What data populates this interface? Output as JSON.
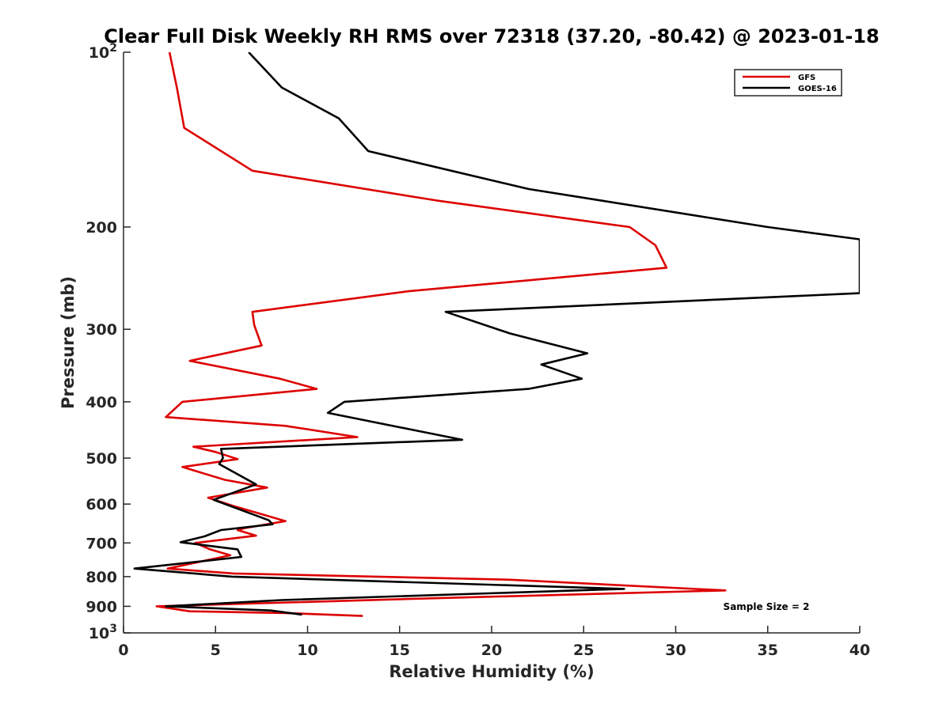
{
  "chart_data": {
    "type": "line",
    "title": "Clear Full Disk Weekly RH RMS over 72318 (37.20, -80.42) @ 2023-01-18",
    "xlabel": "Relative Humidity (%)",
    "ylabel": "Pressure (mb)",
    "xlim": [
      0,
      40
    ],
    "ylim": [
      100,
      1000
    ],
    "yscale": "log",
    "y_reversed": true,
    "xticks": [
      0,
      5,
      10,
      15,
      20,
      25,
      30,
      35,
      40
    ],
    "yticks": [
      {
        "value": 100,
        "base": "10",
        "exp": "2"
      },
      {
        "value": 200,
        "label": "200"
      },
      {
        "value": 300,
        "label": "300"
      },
      {
        "value": 400,
        "label": "400"
      },
      {
        "value": 500,
        "label": "500"
      },
      {
        "value": 600,
        "label": "600"
      },
      {
        "value": 700,
        "label": "700"
      },
      {
        "value": 800,
        "label": "800"
      },
      {
        "value": 900,
        "label": "900"
      },
      {
        "value": 1000,
        "base": "10",
        "exp": "3"
      }
    ],
    "grid": false,
    "legend_position": "top-right",
    "annotation": "Sample Size = 2",
    "series": [
      {
        "name": "GFS",
        "color": "#dd0000",
        "points": [
          [
            2.5,
            100
          ],
          [
            2.9,
            115
          ],
          [
            3.3,
            135
          ],
          [
            7.0,
            160
          ],
          [
            17.0,
            180
          ],
          [
            27.5,
            200
          ],
          [
            28.9,
            215
          ],
          [
            29.5,
            235
          ],
          [
            15.5,
            258
          ],
          [
            7.0,
            280
          ],
          [
            7.1,
            295
          ],
          [
            7.5,
            320
          ],
          [
            3.6,
            340
          ],
          [
            8.5,
            365
          ],
          [
            10.5,
            380
          ],
          [
            3.2,
            400
          ],
          [
            2.3,
            425
          ],
          [
            8.8,
            440
          ],
          [
            12.7,
            460
          ],
          [
            3.8,
            478
          ],
          [
            5.0,
            488
          ],
          [
            6.2,
            502
          ],
          [
            3.2,
            518
          ],
          [
            5.5,
            545
          ],
          [
            7.8,
            562
          ],
          [
            4.6,
            585
          ],
          [
            6.0,
            605
          ],
          [
            8.8,
            642
          ],
          [
            6.6,
            660
          ],
          [
            6.2,
            665
          ],
          [
            7.2,
            680
          ],
          [
            3.9,
            700
          ],
          [
            4.7,
            718
          ],
          [
            5.8,
            735
          ],
          [
            2.4,
            775
          ],
          [
            6.0,
            790
          ],
          [
            21.0,
            810
          ],
          [
            32.7,
            845
          ],
          [
            15.0,
            875
          ],
          [
            1.8,
            900
          ],
          [
            3.6,
            918
          ],
          [
            9.0,
            925
          ],
          [
            13.0,
            935
          ]
        ]
      },
      {
        "name": "GOES-16",
        "color": "#000000",
        "points": [
          [
            6.8,
            100
          ],
          [
            8.6,
            115
          ],
          [
            11.7,
            130
          ],
          [
            13.3,
            148
          ],
          [
            22.0,
            172
          ],
          [
            35.0,
            200
          ],
          [
            40.0,
            210
          ],
          [
            40.0,
            260
          ],
          [
            17.5,
            280
          ],
          [
            21.0,
            305
          ],
          [
            25.2,
            330
          ],
          [
            22.7,
            345
          ],
          [
            24.9,
            365
          ],
          [
            22.0,
            380
          ],
          [
            12.0,
            400
          ],
          [
            11.1,
            418
          ],
          [
            18.4,
            465
          ],
          [
            5.3,
            482
          ],
          [
            5.4,
            500
          ],
          [
            5.2,
            512
          ],
          [
            7.2,
            555
          ],
          [
            4.9,
            590
          ],
          [
            7.9,
            640
          ],
          [
            8.1,
            650
          ],
          [
            5.3,
            665
          ],
          [
            4.4,
            682
          ],
          [
            3.1,
            698
          ],
          [
            4.2,
            705
          ],
          [
            6.2,
            718
          ],
          [
            6.4,
            740
          ],
          [
            0.6,
            775
          ],
          [
            5.9,
            800
          ],
          [
            27.2,
            840
          ],
          [
            8.6,
            878
          ],
          [
            2.3,
            900
          ],
          [
            8.0,
            915
          ],
          [
            9.7,
            930
          ]
        ]
      }
    ]
  }
}
